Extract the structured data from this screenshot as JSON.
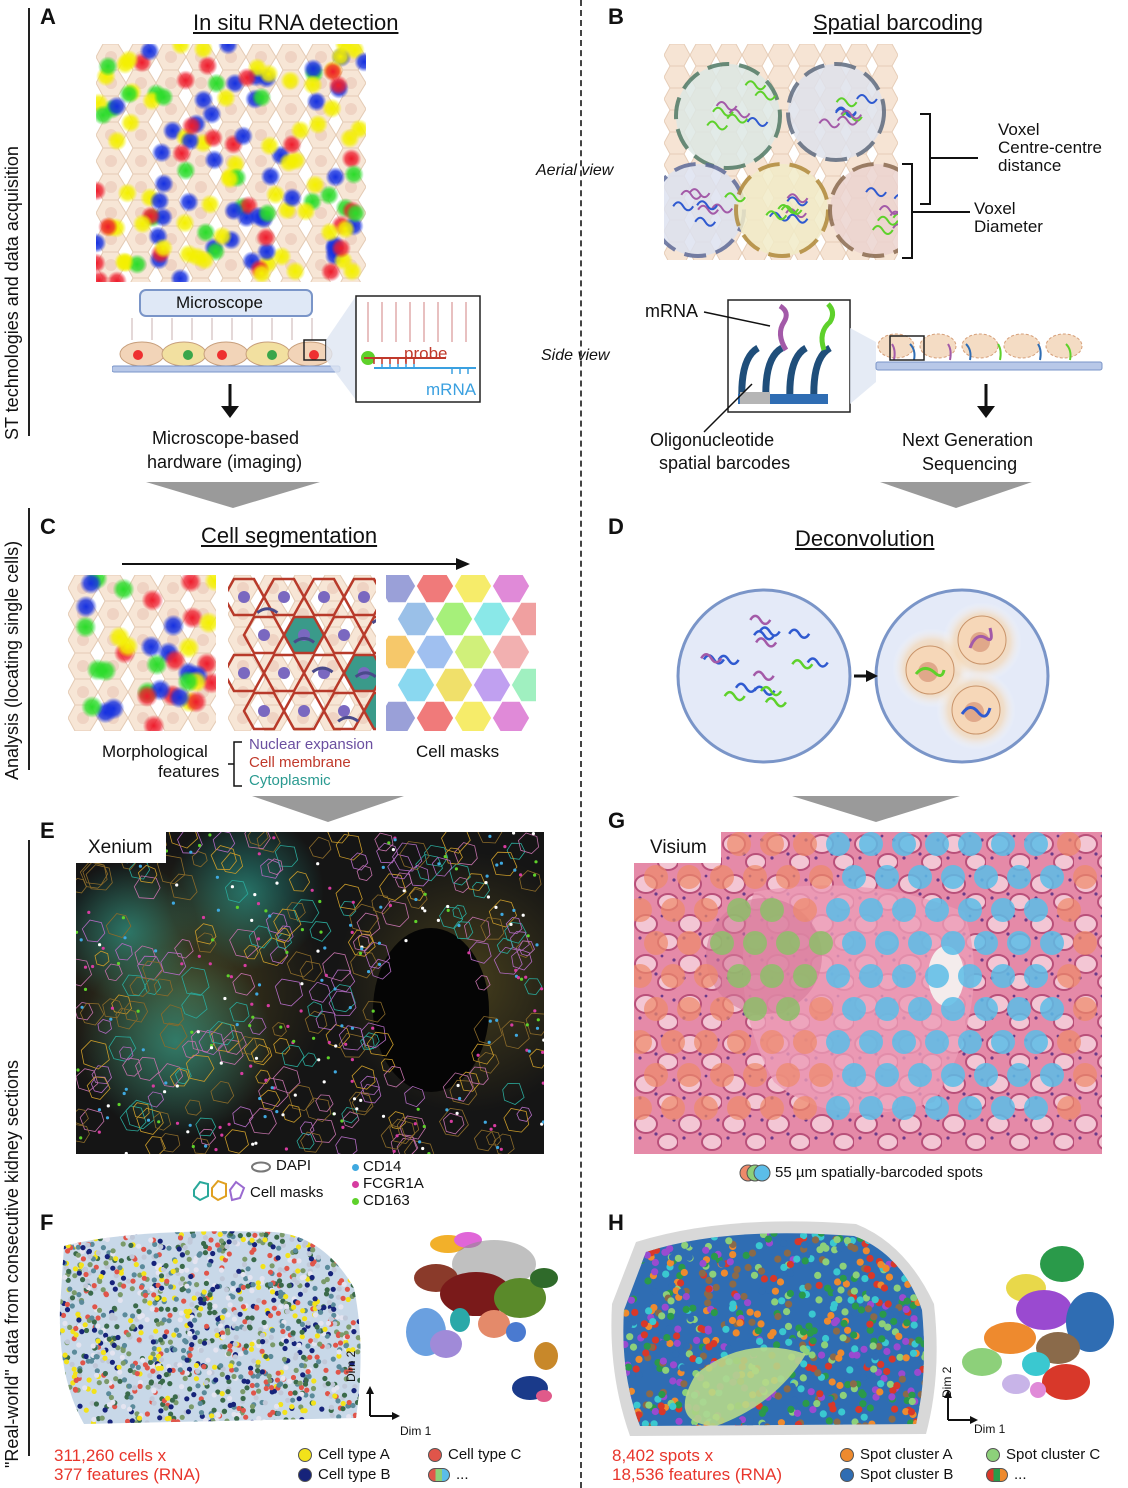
{
  "side_labels": {
    "top": "ST technologies and data acquisition",
    "middle": "Analysis (locating single cells)",
    "bottom": "\"Real-world\" data from consecutive kidney sections"
  },
  "panel_a": {
    "letter": "A",
    "title": "In situ RNA detection",
    "microscope": "Microscope",
    "probe": "probe",
    "mrna": "mRNA",
    "hardware": [
      "Microscope-based",
      "hardware (imaging)"
    ]
  },
  "panel_b": {
    "letter": "B",
    "title": "Spatial barcoding",
    "aerial": "Aerial view",
    "side": "Side view",
    "voxel_dist": [
      "Voxel",
      "Centre-centre",
      "distance"
    ],
    "voxel_diam": [
      "Voxel",
      "Diameter"
    ],
    "mrna": "mRNA",
    "oligo": [
      "Oligonucleotide",
      "spatial barcodes"
    ],
    "ngs": [
      "Next Generation",
      "Sequencing"
    ]
  },
  "panel_c": {
    "letter": "C",
    "title": "Cell segmentation",
    "morph": [
      "Morphological",
      "features"
    ],
    "nuclear": "Nuclear expansion",
    "membrane": "Cell membrane",
    "cytoplasmic": "Cytoplasmic",
    "masks": "Cell masks"
  },
  "panel_d": {
    "letter": "D",
    "title": "Deconvolution"
  },
  "panel_e": {
    "letter": "E",
    "label": "Xenium",
    "dapi": "DAPI",
    "cell_masks": "Cell masks",
    "markers": [
      {
        "name": "CD14",
        "color": "#3fa9e0"
      },
      {
        "name": "FCGR1A",
        "color": "#d63ca0"
      },
      {
        "name": "CD163",
        "color": "#5ed12b"
      }
    ]
  },
  "panel_g": {
    "letter": "G",
    "label": "Visium",
    "spots": "55 µm spatially-barcoded spots"
  },
  "panel_f": {
    "letter": "F",
    "dim2": "Dim 2",
    "dim1": "Dim 1",
    "stats": [
      "311,260 cells x",
      "377 features (RNA)"
    ],
    "legend": [
      {
        "label": "Cell type A",
        "color": "#f2e21a"
      },
      {
        "label": "Cell type C",
        "color": "#e0554a"
      },
      {
        "label": "Cell type B",
        "color": "#16237a"
      },
      {
        "label": "...",
        "color": "#bbbbbb"
      }
    ]
  },
  "panel_h": {
    "letter": "H",
    "dim2": "Dim 2",
    "dim1": "Dim 1",
    "stats": [
      "8,402 spots x",
      "18,536 features (RNA)"
    ],
    "legend": [
      {
        "label": "Spot cluster A",
        "color": "#ee8a2e"
      },
      {
        "label": "Spot cluster C",
        "color": "#8dd07a"
      },
      {
        "label": "Spot cluster B",
        "color": "#2f6db3"
      },
      {
        "label": "...",
        "color": "#bbbbbb"
      }
    ]
  }
}
